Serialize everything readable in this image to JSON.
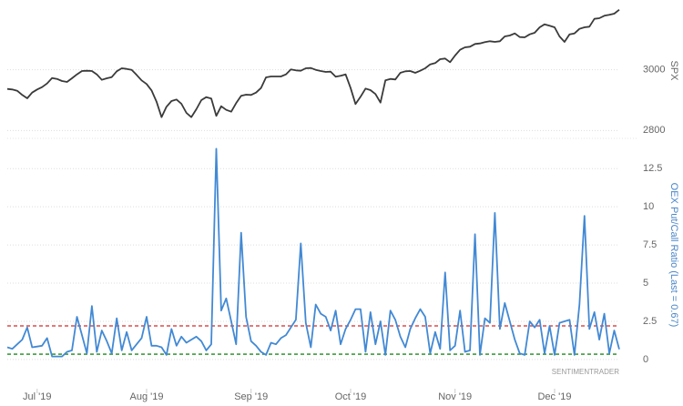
{
  "chart_data": [
    {
      "type": "line",
      "y_label": "SPX",
      "label_color": "#666666",
      "ylim": [
        2780,
        3215
      ],
      "yticks": [
        2800,
        3000
      ],
      "grid": true,
      "series": [
        {
          "name": "SPX",
          "color": "#3a3a3a",
          "values": [
            2937,
            2935,
            2931,
            2917,
            2906,
            2925,
            2935,
            2943,
            2955,
            2973,
            2970,
            2963,
            2960,
            2972,
            2985,
            2996,
            2997,
            2996,
            2985,
            2967,
            2972,
            2976,
            2995,
            3005,
            3003,
            3000,
            2983,
            2965,
            2953,
            2932,
            2895,
            2844,
            2878,
            2897,
            2902,
            2888,
            2858,
            2844,
            2870,
            2900,
            2910,
            2905,
            2848,
            2880,
            2868,
            2862,
            2890,
            2914,
            2918,
            2917,
            2925,
            2940,
            2975,
            2978,
            2978,
            2978,
            2985,
            3001,
            2998,
            2997,
            3005,
            3006,
            3000,
            2996,
            2993,
            2994,
            2977,
            2980,
            2985,
            2940,
            2887,
            2911,
            2938,
            2933,
            2920,
            2892,
            2965,
            2970,
            2968,
            2990,
            2995,
            2996,
            2990,
            2997,
            3005,
            3018,
            3022,
            3035,
            3037,
            3025,
            3047,
            3066,
            3074,
            3076,
            3085,
            3087,
            3091,
            3094,
            3092,
            3094,
            3110,
            3113,
            3120,
            3108,
            3107,
            3117,
            3122,
            3140,
            3150,
            3145,
            3140,
            3110,
            3092,
            3117,
            3120,
            3135,
            3140,
            3142,
            3168,
            3170,
            3178,
            3181,
            3185,
            3198
          ]
        }
      ]
    },
    {
      "type": "line",
      "y_label": "OEX Put/Call Ratio (Last = 0.67)",
      "label_color": "#4a86c8",
      "ylim": [
        -0.6,
        14.3
      ],
      "yticks": [
        0,
        2.5,
        5,
        7.5,
        10,
        12.5
      ],
      "grid": true,
      "watermark": "SENTIMENTRADER",
      "hlines": [
        {
          "value": 2.2,
          "color": "#d62728"
        },
        {
          "value": 0.35,
          "color": "#1a8a1a"
        }
      ],
      "categories": [
        null,
        null,
        null,
        null,
        null,
        null,
        "Jul '19",
        null,
        null,
        null,
        null,
        null,
        null,
        null,
        null,
        null,
        null,
        null,
        null,
        null,
        null,
        null,
        null,
        null,
        null,
        null,
        null,
        null,
        "Aug '19",
        null,
        null,
        null,
        null,
        null,
        null,
        null,
        null,
        null,
        null,
        null,
        null,
        null,
        null,
        null,
        null,
        null,
        null,
        null,
        null,
        "Sep '19",
        null,
        null,
        null,
        null,
        null,
        null,
        null,
        null,
        null,
        null,
        null,
        null,
        null,
        null,
        null,
        null,
        null,
        null,
        null,
        "Oct '19",
        null,
        null,
        null,
        null,
        null,
        null,
        null,
        null,
        null,
        null,
        null,
        null,
        null,
        null,
        null,
        null,
        null,
        null,
        null,
        null,
        "Nov '19",
        null,
        null,
        null,
        null,
        null,
        null,
        null,
        null,
        null,
        null,
        null,
        null,
        null,
        null,
        null,
        null,
        null,
        null,
        null,
        "Dec '19",
        null,
        null,
        null,
        null,
        null,
        null,
        null,
        null,
        null,
        null,
        null,
        null,
        null
      ],
      "series": [
        {
          "name": "OEX Put/Call Ratio",
          "color": "#4289d4",
          "values": [
            0.8,
            0.7,
            1.0,
            1.3,
            2.1,
            0.8,
            0.85,
            0.9,
            1.4,
            0.2,
            0.2,
            0.2,
            0.5,
            0.6,
            2.8,
            1.6,
            0.4,
            3.5,
            0.5,
            1.9,
            1.2,
            0.4,
            2.7,
            0.6,
            1.8,
            0.6,
            1.0,
            1.4,
            2.8,
            0.9,
            0.9,
            0.8,
            0.3,
            2.0,
            0.9,
            1.5,
            1.1,
            1.3,
            1.5,
            1.2,
            0.6,
            1.0,
            13.8,
            3.2,
            4.0,
            2.5,
            1.0,
            8.3,
            2.8,
            1.2,
            0.9,
            0.5,
            0.3,
            1.1,
            1.0,
            1.4,
            1.6,
            2.1,
            2.6,
            7.6,
            2.4,
            0.8,
            3.6,
            3.0,
            2.8,
            1.9,
            3.2,
            1.0,
            2.0,
            2.6,
            3.3,
            3.3,
            0.5,
            3.1,
            1.0,
            2.5,
            0.3,
            3.2,
            2.6,
            1.5,
            0.8,
            2.0,
            2.7,
            3.3,
            2.8,
            0.4,
            1.8,
            0.7,
            5.7,
            0.6,
            0.9,
            3.2,
            0.5,
            0.6,
            8.2,
            0.3,
            2.7,
            2.4,
            9.6,
            2.0,
            3.7,
            2.5,
            1.3,
            0.4,
            0.3,
            2.5,
            2.1,
            2.6,
            0.4,
            2.2,
            0.3,
            2.4,
            2.5,
            2.6,
            0.3,
            3.6,
            9.4,
            2.0,
            3.1,
            1.3,
            3.0,
            0.4,
            1.9,
            0.67
          ]
        }
      ]
    }
  ]
}
